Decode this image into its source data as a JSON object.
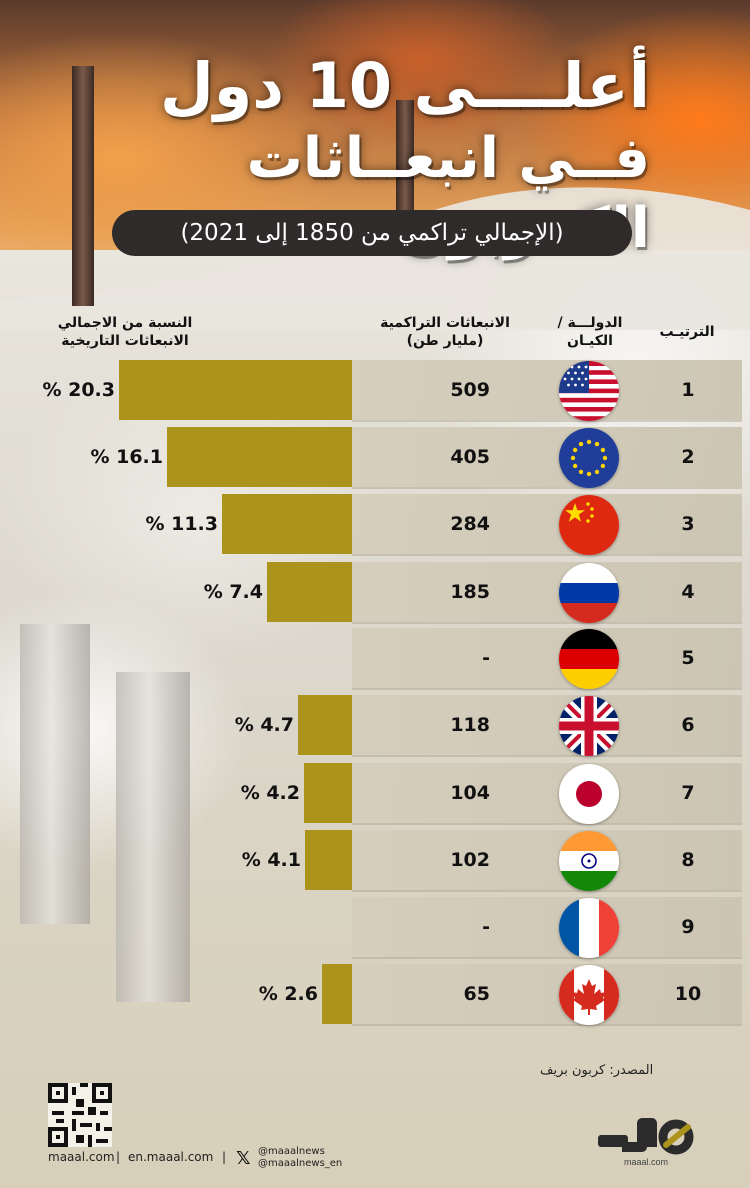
{
  "title": {
    "line1": "أعلــــى 10 دول",
    "line2": "فــي انبعــاثات الكــربون"
  },
  "subtitle": "(الإجمالي تراكمي من 1850 إلى 2021)",
  "headers": {
    "rank": "الترتيـب",
    "country_line1": "الدولـــة /",
    "country_line2": "الكيـان",
    "emissions_line1": "الانبعاثات التراكمية",
    "emissions_line2": "(مليار طن)",
    "share_line1": "النسبة من الاجمالي",
    "share_line2": "الانبعاثات التاريخية"
  },
  "chart_data": {
    "type": "bar",
    "orientation": "horizontal",
    "categories": [
      "United States",
      "European Union",
      "China",
      "Russia",
      "Germany",
      "United Kingdom",
      "Japan",
      "India",
      "France",
      "Canada"
    ],
    "ranks": [
      "1",
      "2",
      "3",
      "4",
      "5",
      "6",
      "7",
      "8",
      "9",
      "10"
    ],
    "flags": [
      "us-flag-icon",
      "eu-flag-icon",
      "china-flag-icon",
      "russia-flag-icon",
      "germany-flag-icon",
      "uk-flag-icon",
      "japan-flag-icon",
      "india-flag-icon",
      "france-flag-icon",
      "canada-flag-icon"
    ],
    "emissions_labels": [
      "509",
      "405",
      "284",
      "185",
      "-",
      "118",
      "104",
      "102",
      "-",
      "65"
    ],
    "share_values": [
      20.3,
      16.1,
      11.3,
      7.4,
      null,
      4.7,
      4.2,
      4.1,
      null,
      2.6
    ],
    "share_labels": [
      "% 20.3",
      "% 16.1",
      "% 11.3",
      "% 7.4",
      "",
      "% 4.7",
      "% 4.2",
      "% 4.1",
      "",
      "% 2.6"
    ],
    "bar_color": "#ab931c"
  },
  "footer": {
    "source": "المصدر: كربون بريف",
    "site1": "maaal.com",
    "site2": "en.maaal.com",
    "handle1": "@maaalnews",
    "handle2": "@maaalnews_en",
    "logo_text": "maaal.com"
  }
}
